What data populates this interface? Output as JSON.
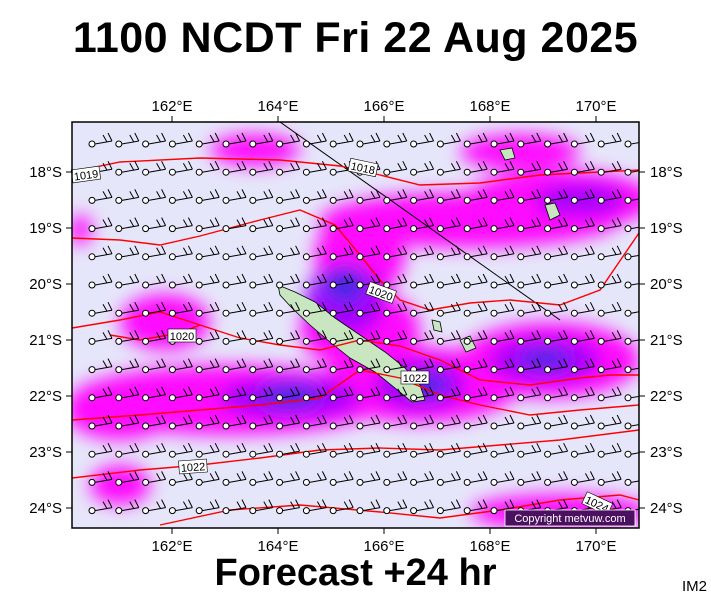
{
  "title": "1100 NCDT Fri 22 Aug 2025",
  "subtitle": "Forecast +24 hr",
  "image_code": "IM2",
  "copyright": "Copyright metvuw.com",
  "axes": {
    "lon_labels": [
      "162°E",
      "164°E",
      "166°E",
      "168°E",
      "170°E"
    ],
    "lat_labels": [
      "18°S",
      "19°S",
      "20°S",
      "21°S",
      "22°S",
      "23°S",
      "24°S"
    ]
  },
  "isobars": [
    {
      "label": "1019"
    },
    {
      "label": "1018"
    },
    {
      "label": "1020"
    },
    {
      "label": "1020"
    },
    {
      "label": "1022"
    },
    {
      "label": "1022"
    },
    {
      "label": "1024"
    }
  ],
  "colors": {
    "sea": "#e6e6fa",
    "rain_light": "#ff00ff",
    "rain_medium": "#9900ff",
    "rain_heavy": "#2222dd",
    "isobar": "#ff0000",
    "land": "#c8e6c0"
  }
}
